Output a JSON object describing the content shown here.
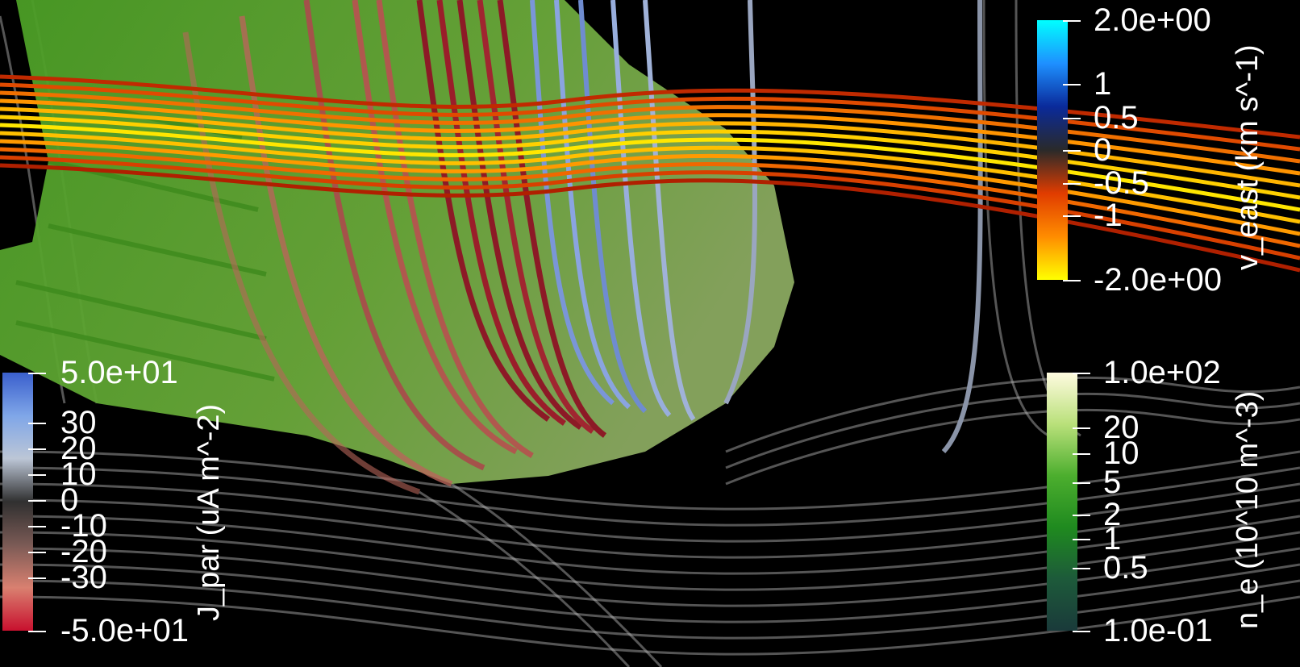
{
  "colorbars": [
    {
      "id": "v_east",
      "title": "v_east (km s^-1)",
      "colors": [
        "#00ffff",
        "#1e90ff",
        "#0a2a9a",
        "#2a2a2a",
        "#e03c00",
        "#ff8c00",
        "#ffff00"
      ],
      "labels": [
        "2.0e+00",
        "1",
        "0.5",
        "0",
        "-0.5",
        "-1",
        "-2.0e+00"
      ]
    },
    {
      "id": "j_par",
      "title": "J_par (uA m^-2)",
      "colors": [
        "#3a5fcd",
        "#7fa6e8",
        "#bcc6d6",
        "#303030",
        "#7a5a55",
        "#d98070",
        "#c8102e"
      ],
      "labels": [
        "5.0e+01",
        "30",
        "20",
        "10",
        "0",
        "-10",
        "-20",
        "-30",
        "-5.0e+01"
      ]
    },
    {
      "id": "n_e",
      "title": "n_e (10^10 m^-3)",
      "colors": [
        "#fffbe0",
        "#b9e07a",
        "#4cae2e",
        "#1f8a1f",
        "#1d5a3a",
        "#1a3a3a"
      ],
      "labels": [
        "1.0e+02",
        "20",
        "10",
        "5",
        "2",
        "1",
        "0.5",
        "1.0e-01"
      ]
    }
  ]
}
